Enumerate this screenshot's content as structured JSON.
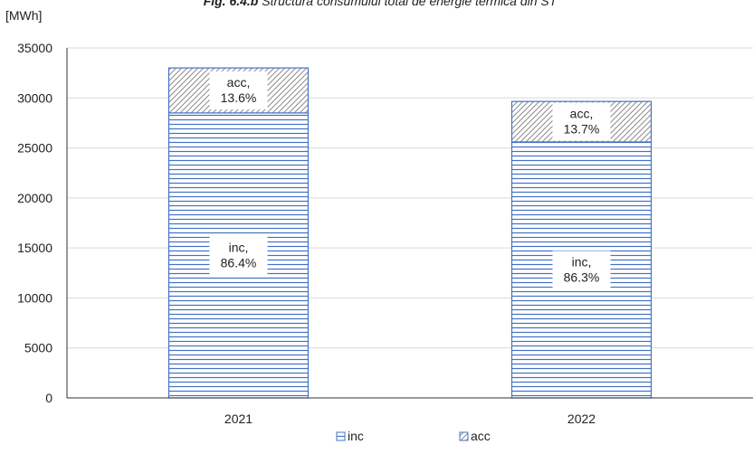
{
  "chart_data": {
    "type": "bar",
    "stacked": true,
    "title_prefix": "Fig. 6.4.b",
    "title": "Structura consumului total de energie termică din ST",
    "ylabel": "[MWh]",
    "ylim": [
      0,
      35000
    ],
    "yticks": [
      0,
      5000,
      10000,
      15000,
      20000,
      25000,
      30000,
      35000
    ],
    "grid": true,
    "legend_position": "bottom",
    "categories": [
      "2021",
      "2022"
    ],
    "series": [
      {
        "name": "inc",
        "pattern": "horizontal-lines",
        "color": "#4472c4",
        "values": [
          28500,
          25600
        ],
        "labels": [
          [
            "inc,",
            "86.4%"
          ],
          [
            "inc,",
            "86.3%"
          ]
        ]
      },
      {
        "name": "acc",
        "pattern": "diagonal-hatch",
        "color": "#4472c4",
        "values": [
          4500,
          4050
        ],
        "labels": [
          [
            "acc,",
            "13.6%"
          ],
          [
            "acc,",
            "13.7%"
          ]
        ]
      }
    ]
  },
  "colors": {
    "bar_outline": "#4472c4",
    "inc_lines": "#4472c4",
    "acc_hatch": "#8c8c8c",
    "grid": "#d9d9d9",
    "axis": "#333333"
  }
}
